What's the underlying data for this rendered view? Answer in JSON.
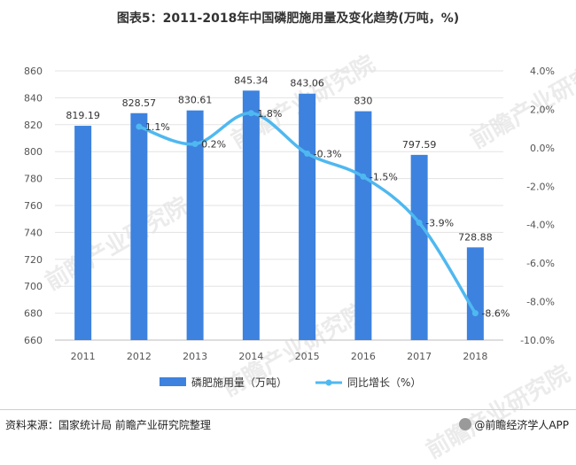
{
  "title": "图表5：2011-2018年中国磷肥施用量及变化趋势(万吨，%)",
  "source": "资料来源：国家统计局 前瞻产业研究院整理",
  "brand": "@前瞻经济学人APP",
  "watermark": "前瞻产业研究院",
  "colors": {
    "bar": "#3d82de",
    "line": "#4fb8f0",
    "axis_text": "#555555",
    "grid": "#e3e3e3"
  },
  "chart_data": {
    "type": "bar",
    "categories": [
      "2011",
      "2012",
      "2013",
      "2014",
      "2015",
      "2016",
      "2017",
      "2018"
    ],
    "series": [
      {
        "name": "磷肥施用量（万吨）",
        "type": "bar",
        "axis": "left",
        "values": [
          819.19,
          828.57,
          830.61,
          845.34,
          843.06,
          830,
          797.59,
          728.88
        ],
        "labels": [
          "819.19",
          "828.57",
          "830.61",
          "845.34",
          "843.06",
          "830",
          "797.59",
          "728.88"
        ]
      },
      {
        "name": "同比增长（%）",
        "type": "line",
        "axis": "right",
        "values": [
          null,
          1.1,
          0.2,
          1.8,
          -0.3,
          -1.5,
          -3.9,
          -8.6
        ],
        "labels": [
          "",
          "1.1%",
          "0.2%",
          "1.8%",
          "-0.3%",
          "-1.5%",
          "-3.9%",
          "-8.6%"
        ]
      }
    ],
    "left_axis": {
      "min": 660,
      "max": 860,
      "step": 20,
      "ticks": [
        "660",
        "680",
        "700",
        "720",
        "740",
        "760",
        "780",
        "800",
        "820",
        "840",
        "860"
      ]
    },
    "right_axis": {
      "min": -10,
      "max": 4,
      "step": 2,
      "ticks": [
        "-10.0%",
        "-8.0%",
        "-6.0%",
        "-4.0%",
        "-2.0%",
        "0.0%",
        "2.0%",
        "4.0%"
      ]
    },
    "grid": true,
    "legend": "bottom"
  }
}
